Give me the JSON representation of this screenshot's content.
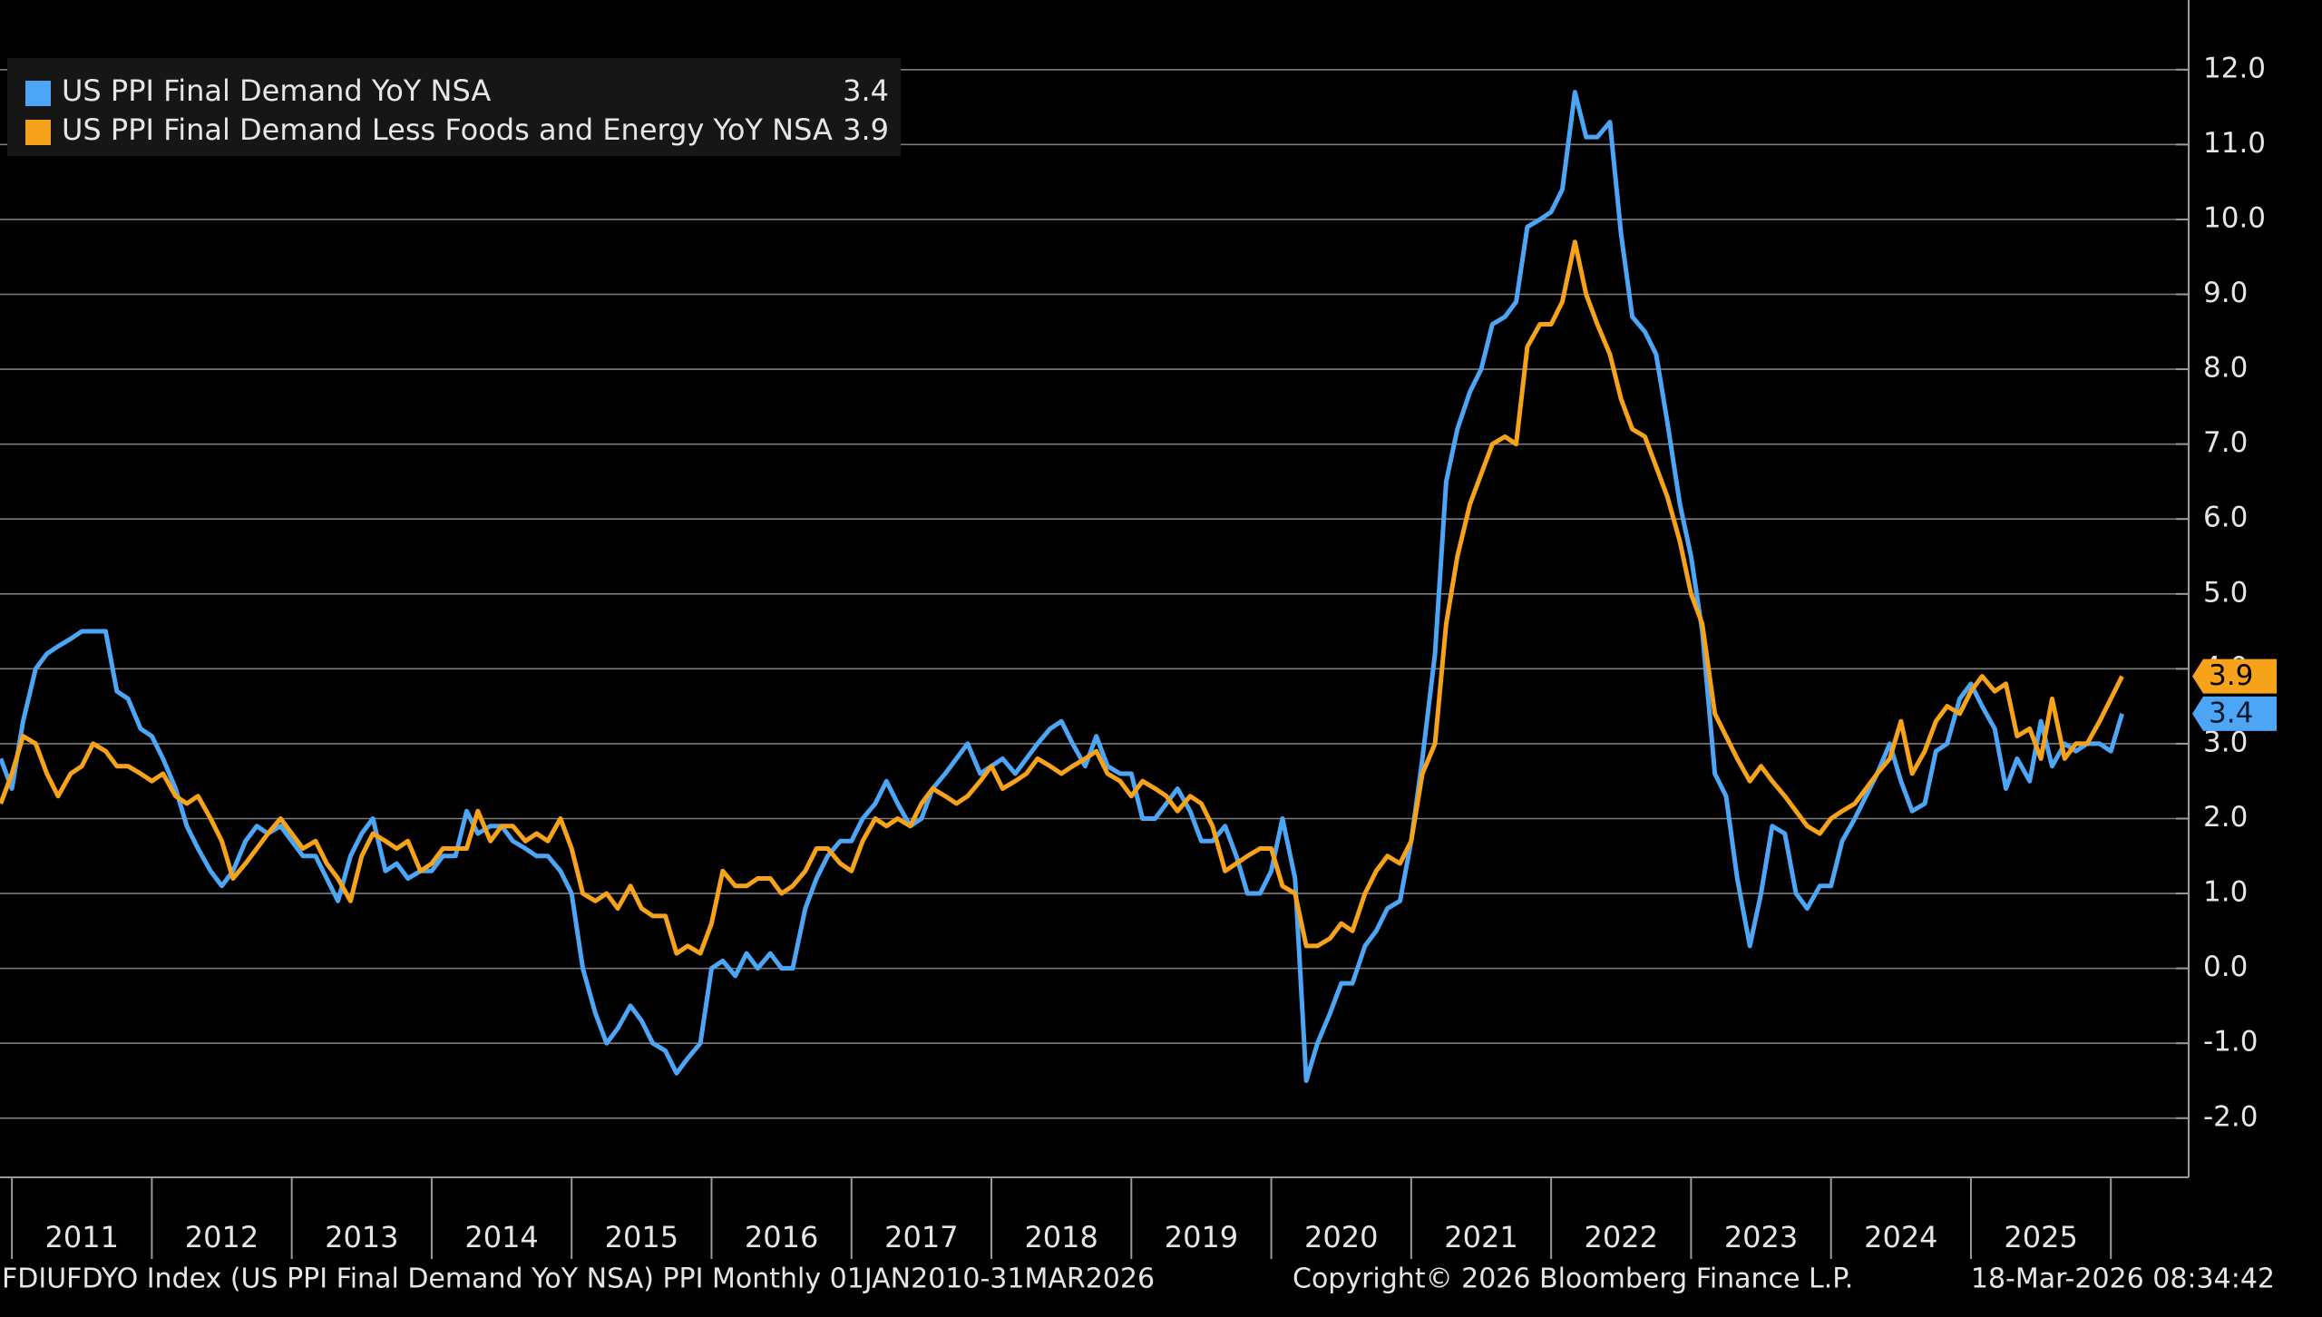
{
  "chart_data": {
    "type": "line",
    "legend": "top-left",
    "grid": true,
    "xlim": [
      2010.915,
      2026.556
    ],
    "ylim": [
      -2.79,
      12.93
    ],
    "xticks": [
      2011,
      2012,
      2013,
      2014,
      2015,
      2016,
      2017,
      2018,
      2019,
      2020,
      2021,
      2022,
      2023,
      2024,
      2025
    ],
    "yticks": [
      {
        "value": -2,
        "label": "-2.0"
      },
      {
        "value": -1,
        "label": "-1.0"
      },
      {
        "value": 0,
        "label": "0.0"
      },
      {
        "value": 1,
        "label": "1.0"
      },
      {
        "value": 2,
        "label": "2.0"
      },
      {
        "value": 3,
        "label": "3.0"
      },
      {
        "value": 4,
        "label": "4.0"
      },
      {
        "value": 5,
        "label": "5.0"
      },
      {
        "value": 6,
        "label": "6.0"
      },
      {
        "value": 7,
        "label": "7.0"
      },
      {
        "value": 8,
        "label": "8.0"
      },
      {
        "value": 9,
        "label": "9.0"
      },
      {
        "value": 10,
        "label": "10.0"
      },
      {
        "value": 11,
        "label": "11.0"
      },
      {
        "value": 12,
        "label": "12.0"
      }
    ],
    "x": [
      2010.92,
      2011.0,
      2011.08,
      2011.17,
      2011.25,
      2011.33,
      2011.42,
      2011.5,
      2011.58,
      2011.67,
      2011.75,
      2011.83,
      2011.92,
      2012.0,
      2012.08,
      2012.17,
      2012.25,
      2012.33,
      2012.42,
      2012.5,
      2012.58,
      2012.67,
      2012.75,
      2012.83,
      2012.92,
      2013.0,
      2013.08,
      2013.17,
      2013.25,
      2013.33,
      2013.42,
      2013.5,
      2013.58,
      2013.67,
      2013.75,
      2013.83,
      2013.92,
      2014.0,
      2014.08,
      2014.17,
      2014.25,
      2014.33,
      2014.42,
      2014.5,
      2014.58,
      2014.67,
      2014.75,
      2014.83,
      2014.92,
      2015.0,
      2015.08,
      2015.17,
      2015.25,
      2015.33,
      2015.42,
      2015.5,
      2015.58,
      2015.67,
      2015.75,
      2015.83,
      2015.92,
      2016.0,
      2016.08,
      2016.17,
      2016.25,
      2016.33,
      2016.42,
      2016.5,
      2016.58,
      2016.67,
      2016.75,
      2016.83,
      2016.92,
      2017.0,
      2017.08,
      2017.17,
      2017.25,
      2017.33,
      2017.42,
      2017.5,
      2017.58,
      2017.67,
      2017.75,
      2017.83,
      2017.92,
      2018.0,
      2018.08,
      2018.17,
      2018.25,
      2018.33,
      2018.42,
      2018.5,
      2018.58,
      2018.67,
      2018.75,
      2018.83,
      2018.92,
      2019.0,
      2019.08,
      2019.17,
      2019.25,
      2019.33,
      2019.42,
      2019.5,
      2019.58,
      2019.67,
      2019.75,
      2019.83,
      2019.92,
      2020.0,
      2020.08,
      2020.17,
      2020.25,
      2020.33,
      2020.42,
      2020.5,
      2020.58,
      2020.67,
      2020.75,
      2020.83,
      2020.92,
      2021.0,
      2021.08,
      2021.17,
      2021.25,
      2021.33,
      2021.42,
      2021.5,
      2021.58,
      2021.67,
      2021.75,
      2021.83,
      2021.92,
      2022.0,
      2022.08,
      2022.17,
      2022.25,
      2022.33,
      2022.42,
      2022.5,
      2022.58,
      2022.67,
      2022.75,
      2022.83,
      2022.92,
      2023.0,
      2023.08,
      2023.17,
      2023.25,
      2023.33,
      2023.42,
      2023.5,
      2023.58,
      2023.67,
      2023.75,
      2023.83,
      2023.92,
      2024.0,
      2024.08,
      2024.17,
      2024.25,
      2024.33,
      2024.42,
      2024.5,
      2024.58,
      2024.67,
      2024.75,
      2024.83,
      2024.92,
      2025.0,
      2025.08,
      2025.17,
      2025.25,
      2025.33,
      2025.42,
      2025.5,
      2025.58,
      2025.67,
      2025.75,
      2025.83,
      2025.92,
      2026.0,
      2026.08
    ],
    "series": [
      {
        "name": "US PPI Final Demand YoY NSA",
        "color": "#4da6f5",
        "values": [
          2.8,
          2.4,
          3.3,
          4.0,
          4.2,
          4.3,
          4.4,
          4.5,
          4.5,
          4.5,
          3.7,
          3.6,
          3.2,
          3.1,
          2.8,
          2.4,
          1.9,
          1.6,
          1.3,
          1.1,
          1.3,
          1.7,
          1.9,
          1.8,
          1.9,
          1.7,
          1.5,
          1.5,
          1.2,
          0.9,
          1.5,
          1.8,
          2.0,
          1.3,
          1.4,
          1.2,
          1.3,
          1.3,
          1.5,
          1.5,
          2.1,
          1.8,
          1.9,
          1.9,
          1.7,
          1.6,
          1.5,
          1.5,
          1.3,
          1.0,
          0.0,
          -0.6,
          -1.0,
          -0.8,
          -0.5,
          -0.7,
          -1.0,
          -1.1,
          -1.4,
          -1.2,
          -1.0,
          0.0,
          0.1,
          -0.1,
          0.2,
          0.0,
          0.2,
          0.0,
          0.0,
          0.8,
          1.2,
          1.5,
          1.7,
          1.7,
          2.0,
          2.2,
          2.5,
          2.2,
          1.9,
          2.0,
          2.4,
          2.6,
          2.8,
          3.0,
          2.6,
          2.7,
          2.8,
          2.6,
          2.8,
          3.0,
          3.2,
          3.3,
          3.0,
          2.7,
          3.1,
          2.7,
          2.6,
          2.6,
          2.0,
          2.0,
          2.2,
          2.4,
          2.1,
          1.7,
          1.7,
          1.9,
          1.5,
          1.0,
          1.0,
          1.3,
          2.0,
          1.2,
          -1.5,
          -1.0,
          -0.6,
          -0.2,
          -0.2,
          0.3,
          0.5,
          0.8,
          0.9,
          1.7,
          2.8,
          4.2,
          6.5,
          7.2,
          7.7,
          8.0,
          8.6,
          8.7,
          8.9,
          9.9,
          10.0,
          10.1,
          10.4,
          11.7,
          11.1,
          11.1,
          11.3,
          9.8,
          8.7,
          8.5,
          8.2,
          7.3,
          6.2,
          5.5,
          4.5,
          2.6,
          2.3,
          1.2,
          0.3,
          1.0,
          1.9,
          1.8,
          1.0,
          0.8,
          1.1,
          1.1,
          1.7,
          2.0,
          2.3,
          2.6,
          3.0,
          2.5,
          2.1,
          2.2,
          2.9,
          3.0,
          3.6,
          3.8,
          3.5,
          3.2,
          2.4,
          2.8,
          2.5,
          3.3,
          2.7,
          3.0,
          2.9,
          3.0,
          3.0,
          2.9,
          3.4
        ]
      },
      {
        "name": "US PPI Final Demand Less Foods and Energy YoY NSA",
        "color": "#f7a21b",
        "values": [
          2.2,
          2.6,
          3.1,
          3.0,
          2.6,
          2.3,
          2.6,
          2.7,
          3.0,
          2.9,
          2.7,
          2.7,
          2.6,
          2.5,
          2.6,
          2.3,
          2.2,
          2.3,
          2.0,
          1.7,
          1.2,
          1.4,
          1.6,
          1.8,
          2.0,
          1.8,
          1.6,
          1.7,
          1.4,
          1.2,
          0.9,
          1.5,
          1.8,
          1.7,
          1.6,
          1.7,
          1.3,
          1.4,
          1.6,
          1.6,
          1.6,
          2.1,
          1.7,
          1.9,
          1.9,
          1.7,
          1.8,
          1.7,
          2.0,
          1.6,
          1.0,
          0.9,
          1.0,
          0.8,
          1.1,
          0.8,
          0.7,
          0.7,
          0.2,
          0.3,
          0.2,
          0.6,
          1.3,
          1.1,
          1.1,
          1.2,
          1.2,
          1.0,
          1.1,
          1.3,
          1.6,
          1.6,
          1.4,
          1.3,
          1.7,
          2.0,
          1.9,
          2.0,
          1.9,
          2.2,
          2.4,
          2.3,
          2.2,
          2.3,
          2.5,
          2.7,
          2.4,
          2.5,
          2.6,
          2.8,
          2.7,
          2.6,
          2.7,
          2.8,
          2.9,
          2.6,
          2.5,
          2.3,
          2.5,
          2.4,
          2.3,
          2.1,
          2.3,
          2.2,
          1.9,
          1.3,
          1.4,
          1.5,
          1.6,
          1.6,
          1.1,
          1.0,
          0.3,
          0.3,
          0.4,
          0.6,
          0.5,
          1.0,
          1.3,
          1.5,
          1.4,
          1.7,
          2.6,
          3.0,
          4.6,
          5.5,
          6.2,
          6.6,
          7.0,
          7.1,
          7.0,
          8.3,
          8.6,
          8.6,
          8.9,
          9.7,
          9.0,
          8.6,
          8.2,
          7.6,
          7.2,
          7.1,
          6.7,
          6.3,
          5.7,
          5.0,
          4.6,
          3.4,
          3.1,
          2.8,
          2.5,
          2.7,
          2.5,
          2.3,
          2.1,
          1.9,
          1.8,
          2.0,
          2.1,
          2.2,
          2.4,
          2.6,
          2.8,
          3.3,
          2.6,
          2.9,
          3.3,
          3.5,
          3.4,
          3.7,
          3.9,
          3.7,
          3.8,
          3.1,
          3.2,
          2.8,
          3.6,
          2.8,
          3.0,
          3.0,
          3.3,
          3.6,
          3.9
        ]
      }
    ],
    "footer_left": "FDIUFDYO Index (US PPI Final Demand YoY NSA) PPI Monthly 01JAN2010-31MAR2026",
    "footer_center": "Copyright© 2026 Bloomberg Finance L.P.",
    "footer_right": "18-Mar-2026 08:34:42"
  }
}
